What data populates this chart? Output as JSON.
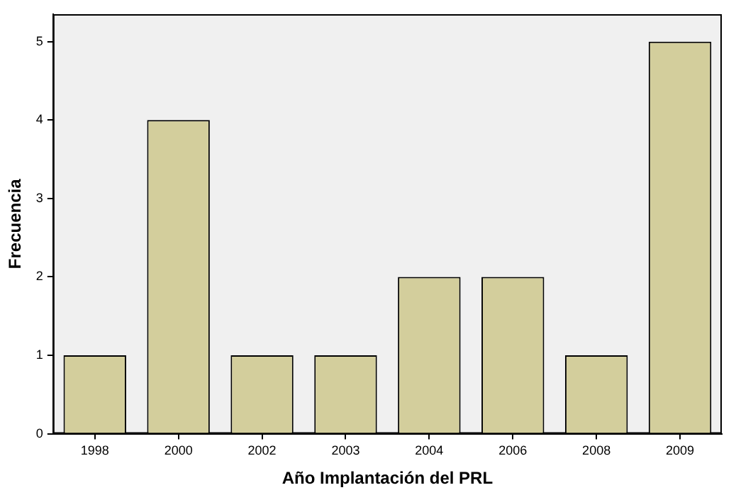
{
  "chart_data": {
    "type": "bar",
    "xlabel": "Año Implantación del PRL",
    "ylabel": "Frecuencia",
    "categories": [
      "1998",
      "2000",
      "2002",
      "2003",
      "2004",
      "2006",
      "2008",
      "2009"
    ],
    "values": [
      1,
      4,
      1,
      1,
      2,
      2,
      1,
      5
    ],
    "color": "#d3ce9c",
    "ylim": [
      0,
      5.35
    ],
    "yticks": [
      0,
      1,
      2,
      3,
      4,
      5
    ],
    "grid": false,
    "legend": false
  }
}
